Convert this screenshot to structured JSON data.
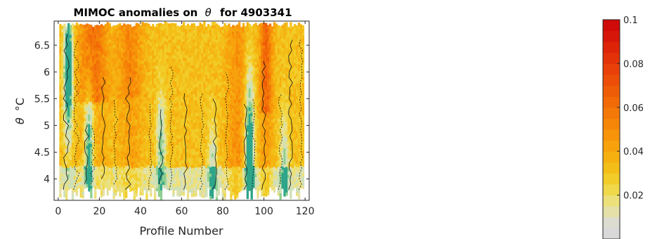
{
  "chart_data": {
    "type": "heatmap",
    "title_prefix": "MIMOC anomalies on",
    "title_symbol": "θ",
    "title_suffix": "for 4903341",
    "xlabel": "Profile Number",
    "ylabel_symbol": "θ",
    "ylabel_unit": "°C",
    "xlim": [
      -2,
      122
    ],
    "ylim": [
      3.6,
      6.95
    ],
    "xticks": [
      0,
      20,
      40,
      60,
      80,
      100,
      120
    ],
    "yticks": [
      4,
      4.5,
      5,
      5.5,
      6,
      6.5
    ],
    "colorbar": {
      "ticks": [
        "0.02",
        "0.04",
        "0.06",
        "0.08",
        "0.1"
      ],
      "tick_values": [
        0.02,
        0.04,
        0.06,
        0.08,
        0.1
      ],
      "lim": [
        0.0,
        0.1
      ],
      "colors": [
        "#d9d9d9",
        "#dcdcd0",
        "#e4e0a8",
        "#ece07a",
        "#f0d84a",
        "#f2cc28",
        "#f4be18",
        "#f6b010",
        "#f7a20c",
        "#f7940a",
        "#f68608",
        "#f47808",
        "#f26a08",
        "#ef5c08",
        "#ec4e08",
        "#e84008",
        "#e33208",
        "#dd2408",
        "#d61608",
        "#cf0a08"
      ]
    },
    "description_of_field": "Anomaly field over profile number and potential temperature; predominantly yellow-orange values between 0.02 and 0.06 with higher orange bands near profiles 10-25 and 95-105, and low/negative (gray-green) streaks near profiles 5, 15, 50, 75, 93."
  }
}
